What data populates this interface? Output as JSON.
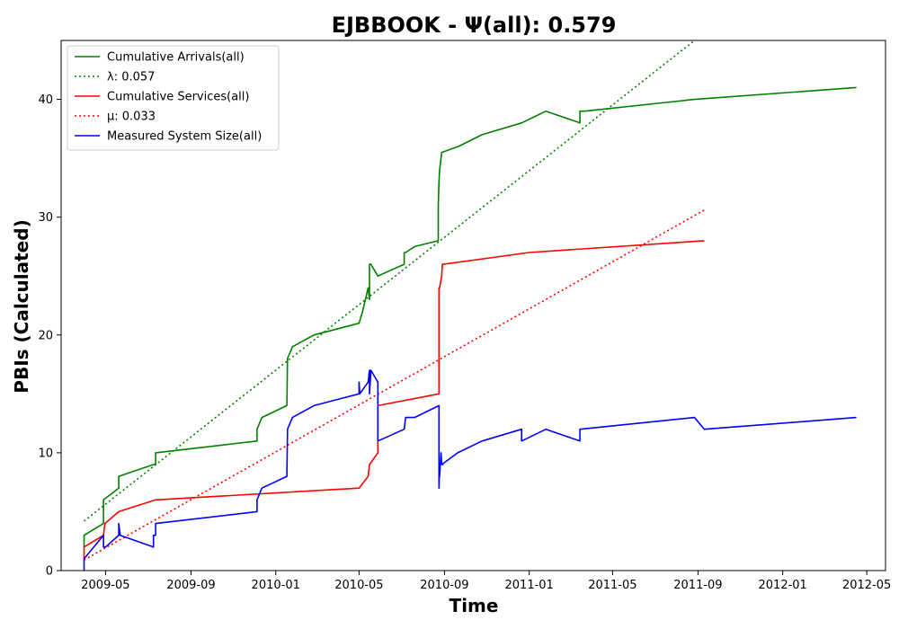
{
  "chart_data": {
    "type": "line",
    "title": "EJBBOOK -  Ψ(all): 0.579",
    "xlabel": "Time",
    "ylabel": "PBIs (Calculated)",
    "x_axis_type": "date",
    "xlim": [
      "2009-02-26",
      "2012-05-28"
    ],
    "ylim": [
      0,
      45
    ],
    "x_ticks": [
      {
        "date": "2009-05-01",
        "label": "2009-05"
      },
      {
        "date": "2009-09-01",
        "label": "2009-09"
      },
      {
        "date": "2010-01-01",
        "label": "2010-01"
      },
      {
        "date": "2010-05-01",
        "label": "2010-05"
      },
      {
        "date": "2010-09-01",
        "label": "2010-09"
      },
      {
        "date": "2011-01-01",
        "label": "2011-01"
      },
      {
        "date": "2011-05-01",
        "label": "2011-05"
      },
      {
        "date": "2011-09-01",
        "label": "2011-09"
      },
      {
        "date": "2012-01-01",
        "label": "2012-01"
      },
      {
        "date": "2012-05-01",
        "label": "2012-05"
      }
    ],
    "y_ticks": [
      0,
      10,
      20,
      30,
      40
    ],
    "grid": false,
    "legend_position": "top-left",
    "series": [
      {
        "name": "Cumulative Arrivals(all)",
        "color": "#008000",
        "style": "solid",
        "x": [
          "2009-03-31",
          "2009-03-31",
          "2009-04-28",
          "2009-04-28",
          "2009-05-20",
          "2009-05-20",
          "2009-07-09",
          "2009-07-12",
          "2009-07-12",
          "2009-12-05",
          "2009-12-05",
          "2009-12-12",
          "2010-01-17",
          "2010-01-18",
          "2010-01-25",
          "2010-02-25",
          "2010-05-01",
          "2010-05-06",
          "2010-05-14",
          "2010-05-16",
          "2010-05-16",
          "2010-05-18",
          "2010-05-28",
          "2010-07-05",
          "2010-07-05",
          "2010-07-07",
          "2010-07-20",
          "2010-08-23",
          "2010-08-23",
          "2010-08-24",
          "2010-08-25",
          "2010-08-27",
          "2010-08-28",
          "2010-09-21",
          "2010-10-25",
          "2010-12-21",
          "2011-01-25",
          "2011-03-15",
          "2011-03-15",
          "2011-03-22",
          "2011-08-27",
          "2012-04-16"
        ],
        "y": [
          2,
          3,
          4,
          6,
          7,
          8,
          9,
          9,
          10,
          11,
          12,
          13,
          14,
          18,
          19,
          20,
          21,
          22,
          24,
          23,
          26,
          26,
          25,
          26,
          27,
          27,
          27.5,
          28,
          31,
          33,
          34,
          35,
          35.5,
          36,
          37,
          38,
          39,
          38,
          39,
          39,
          40,
          41
        ]
      },
      {
        "name": "λ: 0.057",
        "color": "#008000",
        "style": "dotted",
        "x": [
          "2009-03-31",
          "2011-08-27"
        ],
        "y": [
          4.2,
          45
        ]
      },
      {
        "name": "Cumulative Services(all)",
        "color": "#ff0000",
        "style": "solid",
        "x": [
          "2009-03-31",
          "2009-03-31",
          "2009-04-28",
          "2009-04-30",
          "2009-05-20",
          "2009-07-12",
          "2010-05-01",
          "2010-05-14",
          "2010-05-16",
          "2010-05-28",
          "2010-05-28",
          "2010-08-24",
          "2010-08-24",
          "2010-08-25",
          "2010-08-28",
          "2010-08-29",
          "2010-08-30",
          "2011-01-01",
          "2011-09-10"
        ],
        "y": [
          1,
          2,
          3,
          4,
          5,
          6,
          7,
          8,
          9,
          10,
          14,
          15,
          24,
          24,
          25,
          26,
          26,
          27,
          28
        ]
      },
      {
        "name": "μ: 0.033",
        "color": "#ff0000",
        "style": "dotted",
        "x": [
          "2009-03-31",
          "2011-09-10"
        ],
        "y": [
          0.9,
          30.6
        ]
      },
      {
        "name": "Measured System Size(all)",
        "color": "#0000ff",
        "style": "solid",
        "x": [
          "2009-03-31",
          "2009-03-31",
          "2009-04-28",
          "2009-04-28",
          "2009-05-01",
          "2009-05-20",
          "2009-05-20",
          "2009-05-22",
          "2009-07-09",
          "2009-07-09",
          "2009-07-12",
          "2009-07-12",
          "2009-12-05",
          "2009-12-05",
          "2009-12-12",
          "2010-01-17",
          "2010-01-18",
          "2010-01-25",
          "2010-02-25",
          "2010-05-01",
          "2010-05-01",
          "2010-05-02",
          "2010-05-14",
          "2010-05-16",
          "2010-05-16",
          "2010-05-18",
          "2010-05-28",
          "2010-05-28",
          "2010-07-05",
          "2010-07-07",
          "2010-07-20",
          "2010-08-24",
          "2010-08-24",
          "2010-08-25",
          "2010-08-25",
          "2010-08-27",
          "2010-08-28",
          "2010-08-30",
          "2010-08-28",
          "2010-09-20",
          "2010-10-25",
          "2010-12-21",
          "2010-12-21",
          "2011-01-25",
          "2011-03-15",
          "2011-03-15",
          "2011-08-27",
          "2011-09-10",
          "2012-04-16"
        ],
        "y": [
          0,
          1,
          3,
          2,
          2,
          3,
          4,
          3,
          2,
          3,
          3,
          4,
          5,
          6,
          7,
          8,
          12,
          13,
          14,
          15,
          16,
          15,
          16,
          17,
          15,
          17,
          16,
          11,
          12,
          13,
          13,
          14,
          7,
          9,
          8,
          10,
          9,
          9,
          9,
          10,
          11,
          12,
          11,
          12,
          11,
          12,
          13,
          12,
          13
        ]
      }
    ]
  }
}
